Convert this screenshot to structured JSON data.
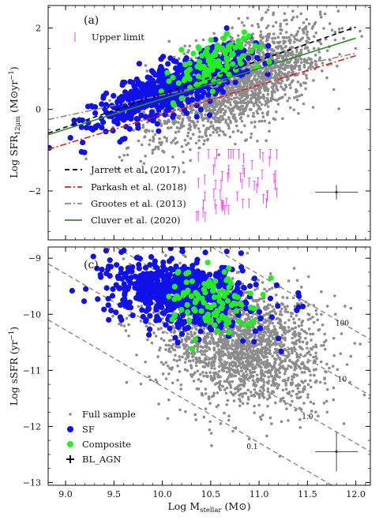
{
  "x_axis": {
    "label": "Log M",
    "label_sub": "stellar",
    "label_unit": " (M",
    "label_unit_end": ")",
    "range": [
      8.82,
      12.15
    ],
    "ticks": [
      "9.0",
      "9.5",
      "10.0",
      "10.5",
      "11.0",
      "11.5",
      "12.0"
    ]
  },
  "chart_data": [
    {
      "type": "scatter",
      "panel_label": "(a)",
      "ylabel_main": "Log SFR",
      "ylabel_sub": "12μm",
      "ylabel_unit": " (M",
      "ylabel_unit_end": "yr",
      "ylabel_exp": "−1",
      "ylabel_close": ")",
      "ylim": [
        -3.2,
        2.55
      ],
      "yticks": [
        "−2",
        "0",
        "2"
      ],
      "ytick_values": [
        -2,
        0,
        2
      ],
      "grid": false,
      "legend_position": "upper-left and lower-left",
      "upper_limit_label": "Upper limit",
      "relations": [
        {
          "name": "Jarrett et al. (2017)",
          "color": "#000000",
          "dash": "6,4",
          "x": [
            8.82,
            12.0
          ],
          "y": [
            -0.58,
            2.02
          ]
        },
        {
          "name": "Parkash et al. (2018)",
          "color": "#e41a1c",
          "dash": "8,3,2,3",
          "x": [
            8.82,
            12.0
          ],
          "y": [
            -0.98,
            1.32
          ]
        },
        {
          "name": "Grootes et al. (2013)",
          "color": "#888888",
          "dash": "8,3,2,3",
          "x": [
            8.82,
            12.0
          ],
          "y": [
            -0.25,
            1.38
          ]
        },
        {
          "name": "Cluver et al. (2020)",
          "color": "#2e8b2e",
          "dash": "",
          "x": [
            8.82,
            12.0
          ],
          "y": [
            -0.62,
            1.75
          ]
        }
      ],
      "series": [
        {
          "name": "Full sample",
          "color": "#8c8c8c",
          "model": {
            "slope": 0.95,
            "intercept": -9.55,
            "sigma": 0.55,
            "xmean": 10.75,
            "xsd": 0.45,
            "count": 2100
          }
        },
        {
          "name": "SF",
          "color": "#1010e8",
          "model": {
            "slope": 0.95,
            "intercept": -9.05,
            "sigma": 0.3,
            "xmean": 10.1,
            "xsd": 0.38,
            "count": 650
          }
        },
        {
          "name": "Composite",
          "color": "#22ee22",
          "model": {
            "slope": 0.8,
            "intercept": -7.3,
            "sigma": 0.3,
            "xmean": 10.5,
            "xsd": 0.22,
            "count": 110
          }
        }
      ],
      "upper_limits": {
        "color": "#ff33ff",
        "x_range": [
          10.35,
          11.2
        ],
        "y_range": [
          -2.75,
          -1.1
        ],
        "count": 60
      },
      "error_bar": {
        "x": 11.8,
        "y": -2.03,
        "xerr": 0.22,
        "yerr": 0.18
      }
    },
    {
      "type": "scatter",
      "panel_label": "(c)",
      "ylabel_main": "Log sSFR",
      "ylabel_unit": " (yr",
      "ylabel_exp": "−1",
      "ylabel_close": ")",
      "ylim": [
        -13.05,
        -8.8
      ],
      "yticks": [
        "−13",
        "−12",
        "−11",
        "−10",
        "−9"
      ],
      "ytick_values": [
        -13,
        -12,
        -11,
        -10,
        -9
      ],
      "grid": false,
      "legend_position": "lower-left",
      "legend": [
        "Full sample",
        "SF",
        "Composite",
        "BL_AGN"
      ],
      "ssfr_lines": [
        {
          "label": "100",
          "x1": 8.82,
          "y1": -7.1,
          "x2": 12.15,
          "y2": -10.45
        },
        {
          "label": "10",
          "x1": 8.82,
          "y1": -8.1,
          "x2": 12.15,
          "y2": -11.45
        },
        {
          "label": "1.0",
          "x1": 8.82,
          "y1": -9.1,
          "x2": 12.15,
          "y2": -12.45
        },
        {
          "label": "0.1",
          "x1": 8.82,
          "y1": -10.1,
          "x2": 12.15,
          "y2": -13.45
        }
      ],
      "ssfr_label_pos": [
        {
          "label": "100",
          "x": 11.86,
          "y": -10.2
        },
        {
          "label": "10",
          "x": 11.86,
          "y": -11.2
        },
        {
          "label": "1.0",
          "x": 11.5,
          "y": -11.87
        },
        {
          "label": "0.1",
          "x": 10.93,
          "y": -12.4
        }
      ],
      "series": [
        {
          "name": "Full sample",
          "color": "#8c8c8c",
          "model": {
            "xmean": 10.8,
            "xsd": 0.42,
            "ymean": -10.5,
            "ysd": 0.55,
            "slope": -0.35,
            "count": 2100
          }
        },
        {
          "name": "SF",
          "color": "#1010e8",
          "model": {
            "xmean": 10.2,
            "xsd": 0.38,
            "ymean": -9.65,
            "ysd": 0.3,
            "slope": -0.15,
            "count": 650
          }
        },
        {
          "name": "Composite",
          "color": "#22ee22",
          "model": {
            "xmean": 10.5,
            "xsd": 0.22,
            "ymean": -9.75,
            "ysd": 0.3,
            "slope": -0.3,
            "count": 110
          }
        }
      ],
      "bl_agn_color": "#000000",
      "error_bar": {
        "x": 11.8,
        "y": -12.45,
        "xerr": 0.22,
        "yerr": 0.35
      }
    }
  ]
}
